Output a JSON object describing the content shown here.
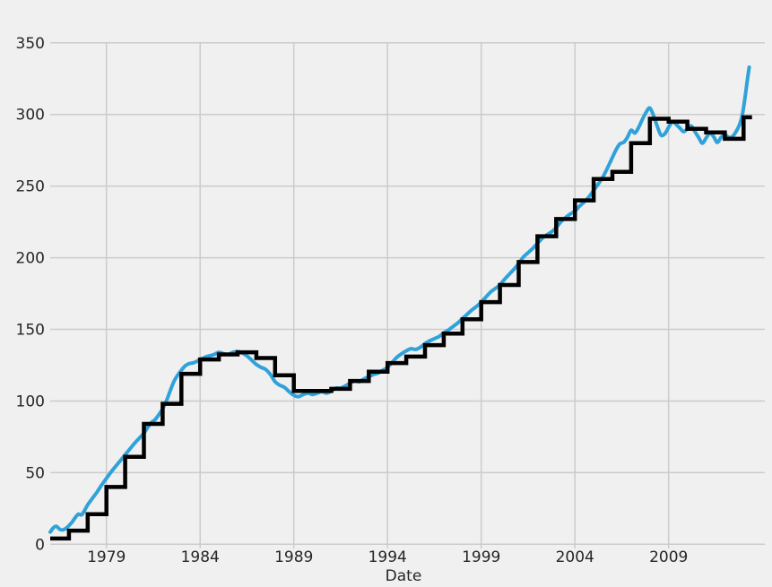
{
  "chart_data": {
    "type": "line",
    "title": "",
    "xlabel": "Date",
    "ylabel": "",
    "xlim": [
      1976.0,
      2014.1
    ],
    "ylim": [
      0,
      350
    ],
    "x_ticks": [
      1979,
      1984,
      1989,
      1994,
      1999,
      2004,
      2009
    ],
    "y_ticks": [
      0,
      50,
      100,
      150,
      200,
      250,
      300,
      350
    ],
    "grid": true,
    "legend": false,
    "colors": {
      "background": "#f0f0f0",
      "grid": "#cbcbcb",
      "tick_label": "#262626",
      "series_monthly": "#30a2da",
      "series_annual_step": "#000000"
    },
    "series": [
      {
        "name": "monthly-series",
        "style": "line",
        "color": "#30a2da",
        "line_width": 4,
        "points": [
          [
            1976.0,
            8.5
          ],
          [
            1976.17,
            11.5
          ],
          [
            1976.33,
            12.5
          ],
          [
            1976.5,
            10.5
          ],
          [
            1976.67,
            10
          ],
          [
            1976.83,
            11
          ],
          [
            1977.0,
            13
          ],
          [
            1977.17,
            15.5
          ],
          [
            1977.33,
            18.5
          ],
          [
            1977.5,
            21
          ],
          [
            1977.67,
            20.5
          ],
          [
            1977.83,
            23.5
          ],
          [
            1978.0,
            27.5
          ],
          [
            1978.25,
            32
          ],
          [
            1978.5,
            36.5
          ],
          [
            1978.75,
            41.5
          ],
          [
            1979.0,
            46
          ],
          [
            1979.25,
            50.5
          ],
          [
            1979.5,
            54.5
          ],
          [
            1979.75,
            58.5
          ],
          [
            1980.0,
            62.5
          ],
          [
            1980.25,
            66.5
          ],
          [
            1980.5,
            70.5
          ],
          [
            1980.75,
            74
          ],
          [
            1981.0,
            77.5
          ],
          [
            1981.2,
            81.5
          ],
          [
            1981.4,
            85
          ],
          [
            1981.6,
            87
          ],
          [
            1981.8,
            90.5
          ],
          [
            1982.0,
            94.5
          ],
          [
            1982.2,
            100
          ],
          [
            1982.4,
            107
          ],
          [
            1982.6,
            113.5
          ],
          [
            1982.8,
            118
          ],
          [
            1983.0,
            121.5
          ],
          [
            1983.2,
            124.5
          ],
          [
            1983.4,
            126
          ],
          [
            1983.6,
            126.5
          ],
          [
            1983.8,
            127.5
          ],
          [
            1984.0,
            129
          ],
          [
            1984.25,
            130.5
          ],
          [
            1984.5,
            131.5
          ],
          [
            1984.75,
            132.5
          ],
          [
            1985.0,
            134
          ],
          [
            1985.25,
            133
          ],
          [
            1985.5,
            132.5
          ],
          [
            1985.75,
            134
          ],
          [
            1986.0,
            134.5
          ],
          [
            1986.25,
            133.5
          ],
          [
            1986.5,
            131.5
          ],
          [
            1986.75,
            128.5
          ],
          [
            1987.0,
            125.5
          ],
          [
            1987.25,
            123.5
          ],
          [
            1987.5,
            122
          ],
          [
            1987.75,
            118.5
          ],
          [
            1988.0,
            113.5
          ],
          [
            1988.25,
            111
          ],
          [
            1988.5,
            109.5
          ],
          [
            1988.75,
            106.5
          ],
          [
            1989.0,
            104
          ],
          [
            1989.25,
            103
          ],
          [
            1989.5,
            104.5
          ],
          [
            1989.75,
            105.5
          ],
          [
            1990.0,
            104.5
          ],
          [
            1990.25,
            105.5
          ],
          [
            1990.5,
            106.5
          ],
          [
            1990.75,
            105.5
          ],
          [
            1991.0,
            107
          ],
          [
            1991.25,
            109
          ],
          [
            1991.5,
            109
          ],
          [
            1991.75,
            110.5
          ],
          [
            1992.0,
            112.5
          ],
          [
            1992.25,
            114
          ],
          [
            1992.5,
            113.5
          ],
          [
            1992.75,
            115.5
          ],
          [
            1993.0,
            117
          ],
          [
            1993.25,
            118.5
          ],
          [
            1993.5,
            119.5
          ],
          [
            1993.75,
            121.5
          ],
          [
            1994.0,
            123.5
          ],
          [
            1994.25,
            127
          ],
          [
            1994.5,
            130.5
          ],
          [
            1994.75,
            133
          ],
          [
            1995.0,
            135
          ],
          [
            1995.25,
            136.5
          ],
          [
            1995.5,
            136
          ],
          [
            1995.75,
            137.5
          ],
          [
            1996.0,
            140
          ],
          [
            1996.25,
            142
          ],
          [
            1996.5,
            143.5
          ],
          [
            1996.75,
            145
          ],
          [
            1997.0,
            147.5
          ],
          [
            1997.25,
            149.5
          ],
          [
            1997.5,
            152
          ],
          [
            1997.75,
            154.5
          ],
          [
            1998.0,
            157.5
          ],
          [
            1998.25,
            160.5
          ],
          [
            1998.5,
            163.5
          ],
          [
            1998.75,
            166
          ],
          [
            1999.0,
            169
          ],
          [
            1999.25,
            172.5
          ],
          [
            1999.5,
            176
          ],
          [
            1999.75,
            178.5
          ],
          [
            2000.0,
            181
          ],
          [
            2000.25,
            185
          ],
          [
            2000.5,
            188.5
          ],
          [
            2000.75,
            192
          ],
          [
            2001.0,
            196
          ],
          [
            2001.25,
            200.5
          ],
          [
            2001.5,
            203.5
          ],
          [
            2001.75,
            206.5
          ],
          [
            2002.0,
            210
          ],
          [
            2002.25,
            213.5
          ],
          [
            2002.5,
            216
          ],
          [
            2002.75,
            218
          ],
          [
            2003.0,
            221
          ],
          [
            2003.25,
            225
          ],
          [
            2003.5,
            228
          ],
          [
            2003.75,
            230.5
          ],
          [
            2004.0,
            232.5
          ],
          [
            2004.25,
            236
          ],
          [
            2004.5,
            239
          ],
          [
            2004.75,
            242.5
          ],
          [
            2005.0,
            247
          ],
          [
            2005.25,
            251.5
          ],
          [
            2005.5,
            256.5
          ],
          [
            2005.75,
            263
          ],
          [
            2006.0,
            270
          ],
          [
            2006.2,
            275.5
          ],
          [
            2006.4,
            279.5
          ],
          [
            2006.6,
            280.5
          ],
          [
            2006.8,
            284
          ],
          [
            2007.0,
            289
          ],
          [
            2007.2,
            287
          ],
          [
            2007.4,
            291
          ],
          [
            2007.6,
            296.5
          ],
          [
            2007.8,
            301.5
          ],
          [
            2008.0,
            304.5
          ],
          [
            2008.2,
            299
          ],
          [
            2008.4,
            291.5
          ],
          [
            2008.6,
            285.5
          ],
          [
            2008.8,
            286.5
          ],
          [
            2009.0,
            291
          ],
          [
            2009.2,
            295
          ],
          [
            2009.4,
            293
          ],
          [
            2009.6,
            290.5
          ],
          [
            2009.8,
            288
          ],
          [
            2010.0,
            290
          ],
          [
            2010.2,
            292
          ],
          [
            2010.4,
            288
          ],
          [
            2010.6,
            284
          ],
          [
            2010.8,
            280
          ],
          [
            2011.0,
            283.5
          ],
          [
            2011.2,
            287
          ],
          [
            2011.4,
            284.5
          ],
          [
            2011.6,
            280.5
          ],
          [
            2011.8,
            284
          ],
          [
            2012.0,
            286
          ],
          [
            2012.2,
            284
          ],
          [
            2012.4,
            284.5
          ],
          [
            2012.6,
            288
          ],
          [
            2012.8,
            293.5
          ],
          [
            2012.95,
            301
          ],
          [
            2013.1,
            314
          ],
          [
            2013.2,
            324
          ],
          [
            2013.3,
            333
          ]
        ]
      },
      {
        "name": "annual-step-series",
        "style": "step-post",
        "color": "#000000",
        "line_width": 4.5,
        "years": [
          1976,
          1977,
          1978,
          1979,
          1980,
          1981,
          1982,
          1983,
          1984,
          1985,
          1986,
          1987,
          1988,
          1989,
          1990,
          1991,
          1992,
          1993,
          1994,
          1995,
          1996,
          1997,
          1998,
          1999,
          2000,
          2001,
          2002,
          2003,
          2004,
          2005,
          2006,
          2007,
          2008,
          2009,
          2010,
          2011,
          2012,
          2013
        ],
        "values": [
          4,
          9.5,
          21,
          40,
          61,
          84,
          98,
          119,
          129,
          132.5,
          134,
          130,
          118,
          107,
          107,
          108.5,
          114,
          120.5,
          126.5,
          131,
          139,
          147,
          157,
          169,
          181,
          197,
          215,
          227,
          240,
          255,
          260,
          280,
          297,
          295,
          290,
          287.5,
          283,
          298
        ],
        "x_end": 2013.45
      }
    ]
  }
}
